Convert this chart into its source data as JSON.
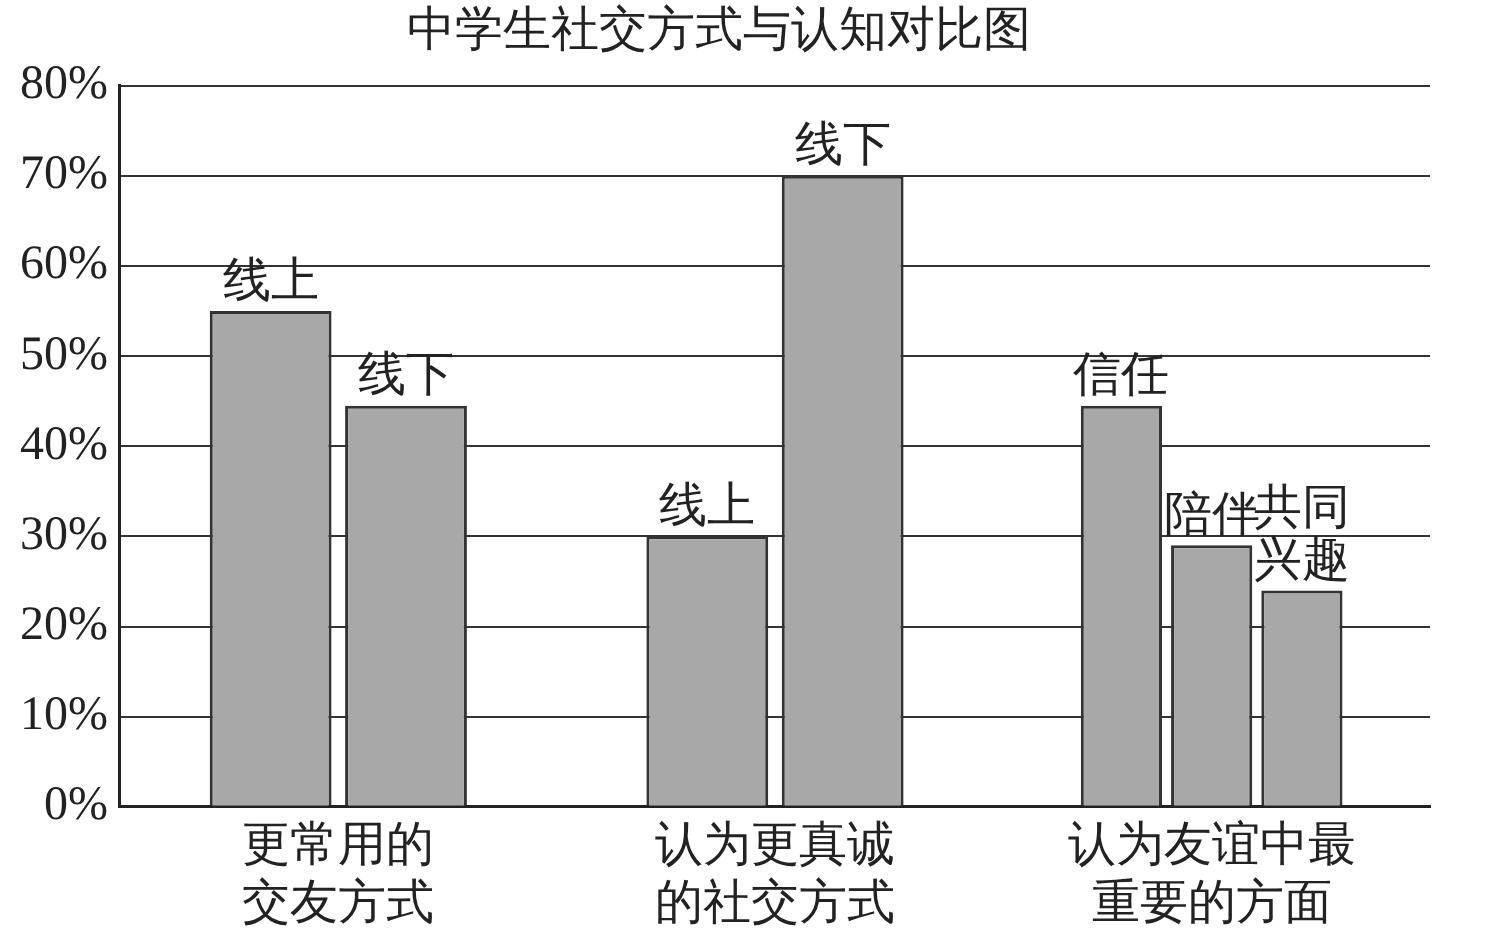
{
  "chart_data": {
    "type": "bar",
    "title": "中学生社交方式与认知对比图",
    "categories": [
      "更常用的交友方式",
      "认为更真诚的社交方式",
      "认为友谊中最重要的方面"
    ],
    "series": [
      {
        "color": "#a8a8a8",
        "values": [
          55,
          30,
          44.5
        ],
        "value_labels": [
          "线上",
          "线上",
          "信任"
        ]
      },
      {
        "color": "#a8a8a8",
        "values": [
          44.5,
          70,
          29
        ],
        "value_labels": [
          "线下",
          "线下",
          "陪伴"
        ]
      },
      {
        "color": "#a8a8a8",
        "values": [
          null,
          null,
          24
        ],
        "value_labels": [
          null,
          null,
          "共同兴趣"
        ]
      }
    ],
    "ylim": [
      0,
      80
    ],
    "yticks": [
      {
        "value": 0,
        "label": "0%"
      },
      {
        "value": 10,
        "label": "10%"
      },
      {
        "value": 20,
        "label": "20%"
      },
      {
        "value": 30,
        "label": "30%"
      },
      {
        "value": 40,
        "label": "40%"
      },
      {
        "value": 50,
        "label": "50%"
      },
      {
        "value": 60,
        "label": "60%"
      },
      {
        "value": 70,
        "label": "70%"
      },
      {
        "value": 80,
        "label": "80%"
      }
    ],
    "grid": "y",
    "legend": false
  }
}
